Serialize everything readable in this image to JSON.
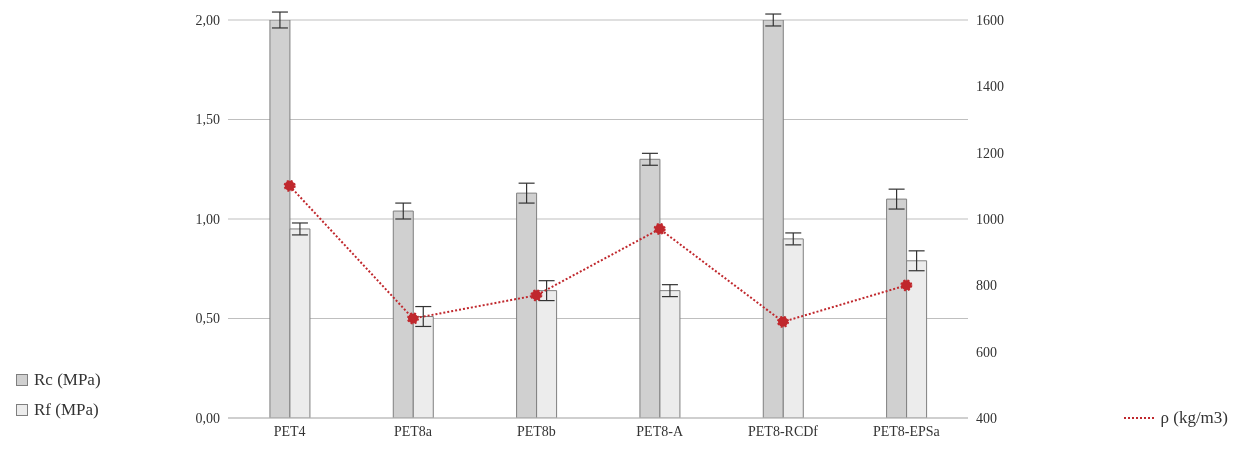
{
  "chart_data": {
    "type": "bar",
    "categories": [
      "PET4",
      "PET8a",
      "PET8b",
      "PET8-A",
      "PET8-RCDf",
      "PET8-EPSa"
    ],
    "series": [
      {
        "name": "Rc (MPa)",
        "color": "#d0d0d0",
        "values": [
          2.0,
          1.04,
          1.13,
          1.3,
          2.0,
          1.1
        ],
        "errors": [
          0.04,
          0.04,
          0.05,
          0.03,
          0.03,
          0.05
        ]
      },
      {
        "name": "Rf (MPa)",
        "color": "#ececec",
        "values": [
          0.95,
          0.51,
          0.64,
          0.64,
          0.9,
          0.79
        ],
        "errors": [
          0.03,
          0.05,
          0.05,
          0.03,
          0.03,
          0.05
        ]
      },
      {
        "name": "ρ (kg/m3)",
        "type": "line",
        "axis": "y2",
        "color": "#c0282d",
        "line_style": "dotted",
        "marker": "circle",
        "values": [
          1100,
          700,
          770,
          970,
          690,
          800
        ]
      }
    ],
    "ylim": [
      0,
      2
    ],
    "yticks": [
      {
        "value": 0,
        "label": "0,00"
      },
      {
        "value": 0.5,
        "label": "0,50"
      },
      {
        "value": 1,
        "label": "1,00"
      },
      {
        "value": 1.5,
        "label": "1,50"
      },
      {
        "value": 2,
        "label": "2,00"
      }
    ],
    "y2lim": [
      400,
      1600
    ],
    "y2ticks": [
      400,
      600,
      800,
      1000,
      1200,
      1400,
      1600
    ],
    "grid": "y",
    "legend": "left"
  }
}
